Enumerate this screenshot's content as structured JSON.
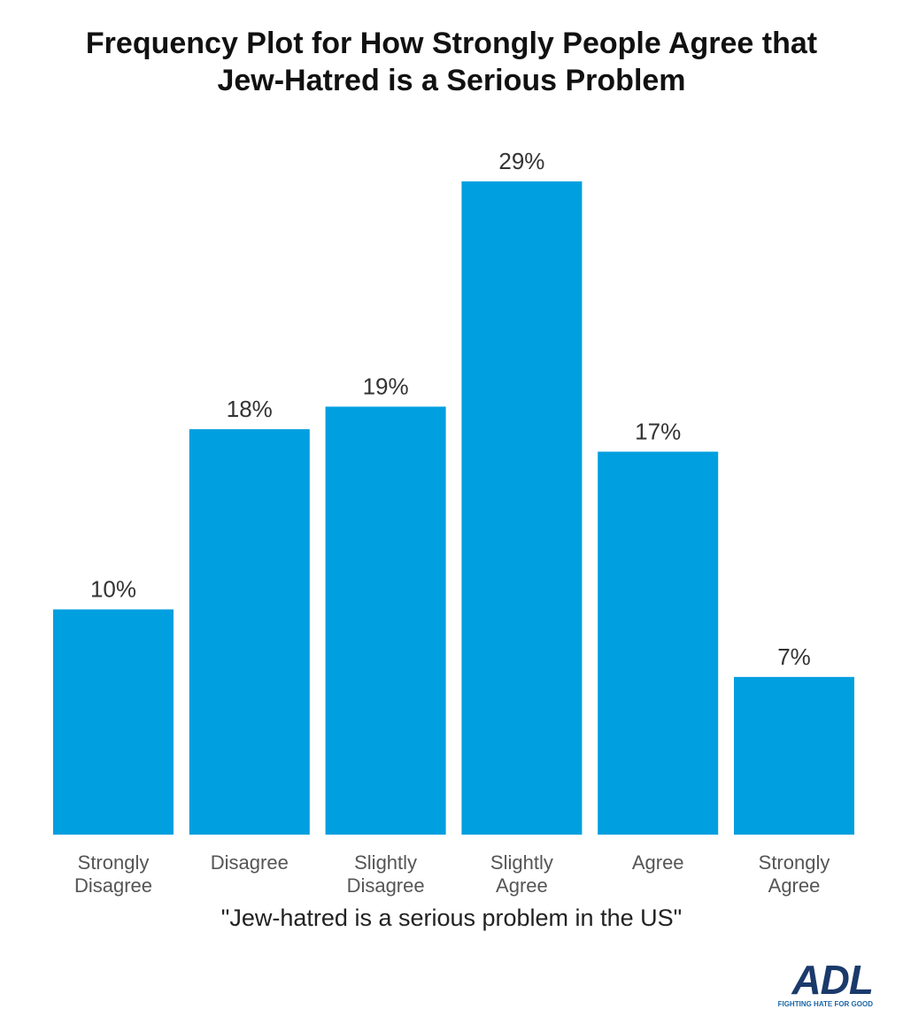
{
  "chart_data": {
    "type": "bar",
    "title": "Frequency Plot for How Strongly People Agree that Jew-Hatred is a Serious Problem",
    "x_label": "\"Jew-hatred is a serious problem in the US\"",
    "categories": [
      "Strongly Disagree",
      "Disagree",
      "Slightly Disagree",
      "Slightly Agree",
      "Agree",
      "Strongly Agree"
    ],
    "values": [
      10,
      18,
      19,
      29,
      17,
      7
    ],
    "value_labels": [
      "10%",
      "18%",
      "19%",
      "29%",
      "17%",
      "7%"
    ],
    "color": "#009fdf"
  },
  "logo": {
    "name": "ADL",
    "tagline": "FIGHTING HATE FOR GOOD"
  }
}
